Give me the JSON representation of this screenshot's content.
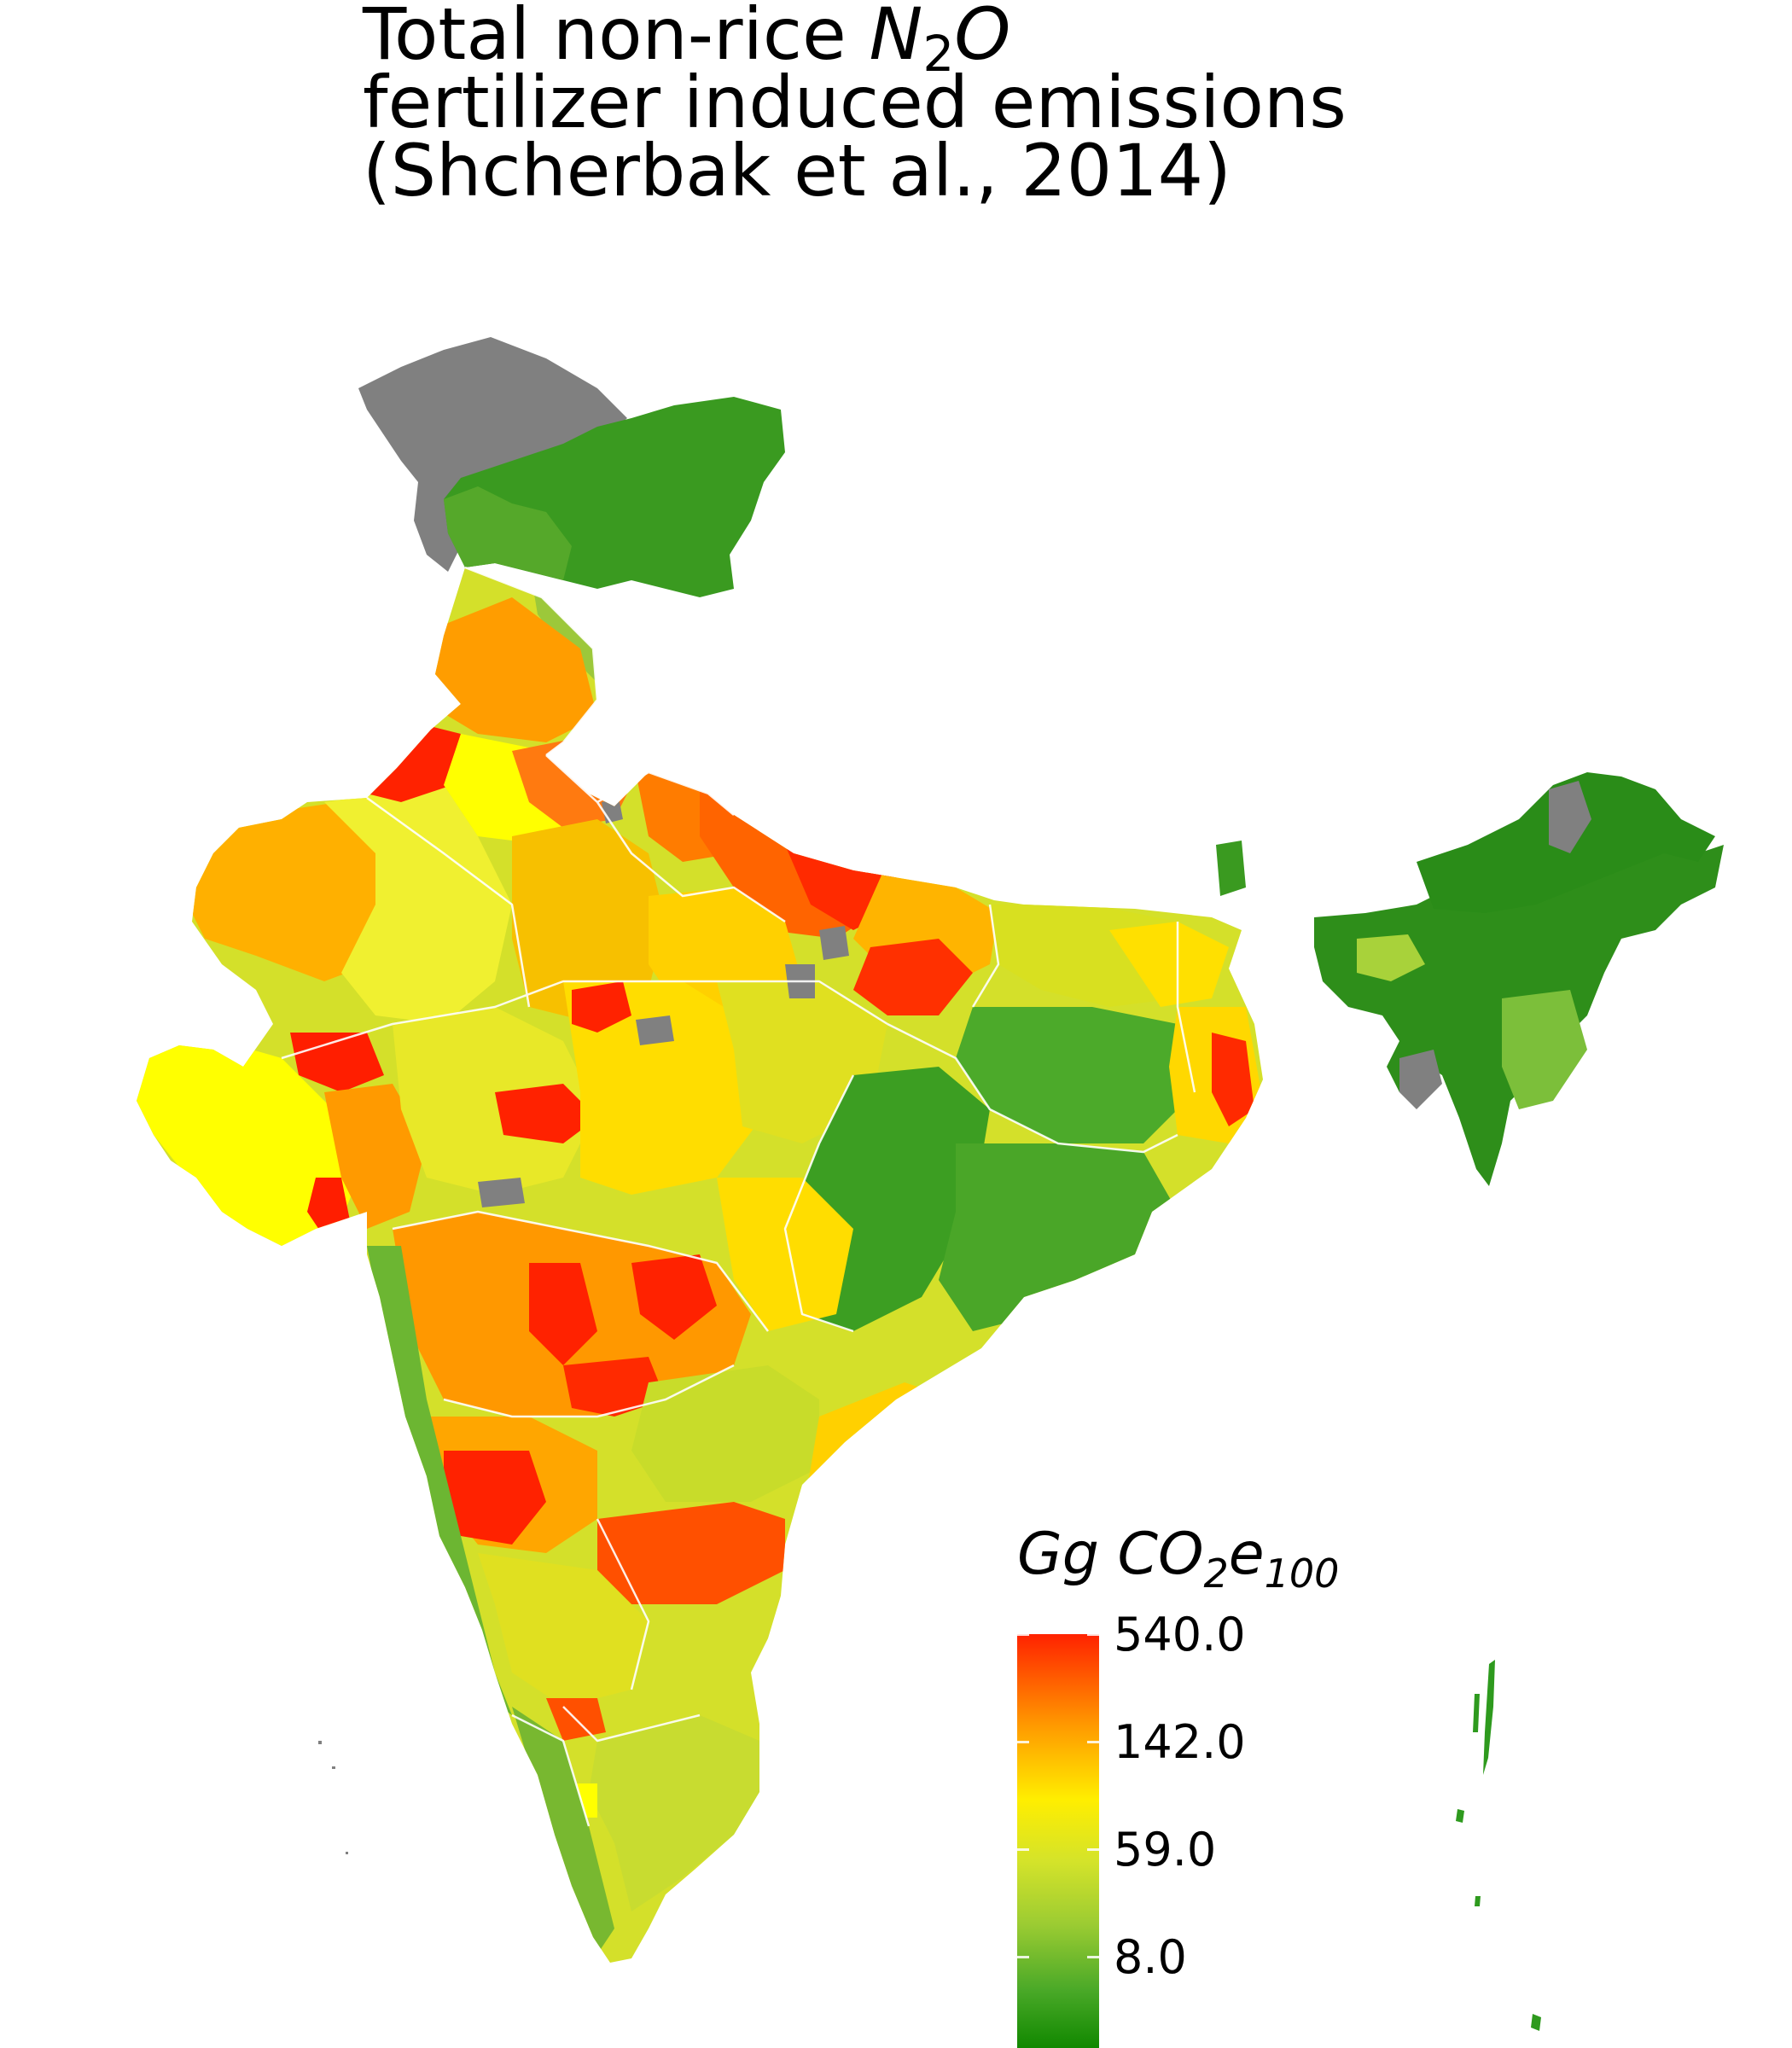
{
  "title": {
    "line1_prefix": "Total non-rice ",
    "line1_n": "N",
    "line1_sub": "2",
    "line1_o": "O",
    "line2": "fertilizer induced emissions",
    "line3": "(Shcherbak et al., 2014)"
  },
  "legend": {
    "unit_main": "Gg CO",
    "unit_sub1": "2",
    "unit_e": "e",
    "unit_sub2": "100",
    "ticks": [
      {
        "label": "540.0",
        "fraction": 0.0
      },
      {
        "label": "142.0",
        "fraction": 0.26
      },
      {
        "label": "59.0",
        "fraction": 0.52
      },
      {
        "label": "8.0",
        "fraction": 0.78
      }
    ]
  },
  "colors": {
    "no_data": "#808080",
    "very_high": "#ff1a00",
    "high": "#ff8c00",
    "mid_high": "#ffd000",
    "mid": "#ffff00",
    "mid_low": "#c8e02a",
    "low": "#7cbf2e",
    "very_low": "#2e9a1e",
    "border": "#ffffff"
  }
}
